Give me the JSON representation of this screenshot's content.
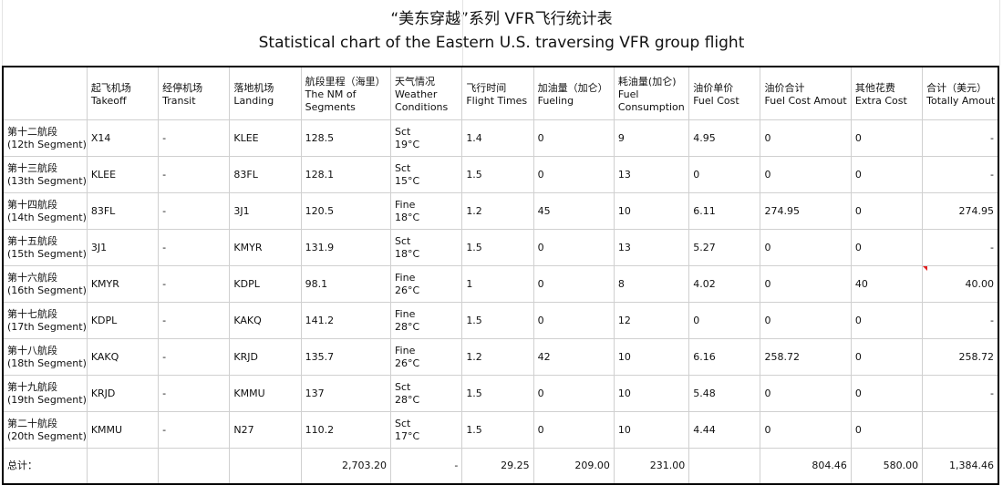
{
  "title_cn": "“美东穿越”系列 VFR飞行统计表",
  "title_en": "Statistical chart of the Eastern U.S. traversing VFR group flight",
  "headers": [
    {
      "cn": "",
      "en": ""
    },
    {
      "cn": "起飞机场",
      "en": "Takeoff"
    },
    {
      "cn": "经停机场",
      "en": "Transit"
    },
    {
      "cn": "落地机场",
      "en": "Landing"
    },
    {
      "cn": "航段里程（海里）",
      "en": "The NM of",
      "en2": "Segments"
    },
    {
      "cn": "天气情况",
      "en": "Weather",
      "en2": "Conditions"
    },
    {
      "cn": "飞行时间",
      "en": "Flight Times"
    },
    {
      "cn": "加油量（加仑）",
      "en": "Fueling"
    },
    {
      "cn": "耗油量(加仑)",
      "en": "Fuel",
      "en2": "Consumption"
    },
    {
      "cn": "油价单价",
      "en": "Fuel Cost"
    },
    {
      "cn": "油价合计",
      "en": "Fuel Cost Amout"
    },
    {
      "cn": "其他花费",
      "en": "Extra Cost"
    },
    {
      "cn": "合计（美元）",
      "en": "Totally Amout"
    }
  ],
  "rows": [
    {
      "seg_cn": "第十二航段",
      "seg_en": "(12th Segment)",
      "takeoff": "X14",
      "transit": "-",
      "landing": "KLEE",
      "nm": "128.5",
      "wx1": "Sct",
      "wx2": "19°C",
      "time": "1.4",
      "fueling": "0",
      "consumption": "9",
      "fuel_cost": "4.95",
      "fuel_amount": "0",
      "extra": "0",
      "total": "-"
    },
    {
      "seg_cn": "第十三航段",
      "seg_en": "(13th Segment)",
      "takeoff": "KLEE",
      "transit": "-",
      "landing": "83FL",
      "nm": "128.1",
      "wx1": "Sct",
      "wx2": "15°C",
      "time": "1.5",
      "fueling": "0",
      "consumption": "13",
      "fuel_cost": "0",
      "fuel_amount": "0",
      "extra": "0",
      "total": "-"
    },
    {
      "seg_cn": "第十四航段",
      "seg_en": "(14th Segment)",
      "takeoff": "83FL",
      "transit": "-",
      "landing": "3J1",
      "nm": "120.5",
      "wx1": "Fine",
      "wx2": "18°C",
      "time": "1.2",
      "fueling": "45",
      "consumption": "10",
      "fuel_cost": "6.11",
      "fuel_amount": "274.95",
      "extra": "0",
      "total": "274.95"
    },
    {
      "seg_cn": "第十五航段",
      "seg_en": "(15th Segment)",
      "takeoff": "3J1",
      "transit": "-",
      "landing": "KMYR",
      "nm": "131.9",
      "wx1": "Sct",
      "wx2": "18°C",
      "time": "1.5",
      "fueling": "0",
      "consumption": "13",
      "fuel_cost": "5.27",
      "fuel_amount": "0",
      "extra": "0",
      "total": "-"
    },
    {
      "seg_cn": "第十六航段",
      "seg_en": "(16th Segment)",
      "takeoff": "KMYR",
      "transit": "-",
      "landing": "KDPL",
      "nm": "98.1",
      "wx1": "Fine",
      "wx2": "26°C",
      "time": "1",
      "fueling": "0",
      "consumption": "8",
      "fuel_cost": "4.02",
      "fuel_amount": "0",
      "extra": "40",
      "total": "40.00"
    },
    {
      "seg_cn": "第十七航段",
      "seg_en": "(17th Segment)",
      "takeoff": "KDPL",
      "transit": "-",
      "landing": "KAKQ",
      "nm": "141.2",
      "wx1": "Fine",
      "wx2": "28°C",
      "time": "1.5",
      "fueling": "0",
      "consumption": "12",
      "fuel_cost": "0",
      "fuel_amount": "0",
      "extra": "0",
      "total": "-"
    },
    {
      "seg_cn": "第十八航段",
      "seg_en": "(18th Segment)",
      "takeoff": "KAKQ",
      "transit": "-",
      "landing": "KRJD",
      "nm": "135.7",
      "wx1": "Fine",
      "wx2": "26°C",
      "time": "1.2",
      "fueling": "42",
      "consumption": "10",
      "fuel_cost": "6.16",
      "fuel_amount": "258.72",
      "extra": "0",
      "total": "258.72"
    },
    {
      "seg_cn": "第十九航段",
      "seg_en": "(19th Segment)",
      "takeoff": "KRJD",
      "transit": "-",
      "landing": "KMMU",
      "nm": "137",
      "wx1": "Sct",
      "wx2": "28°C",
      "time": "1.5",
      "fueling": "0",
      "consumption": "10",
      "fuel_cost": "5.48",
      "fuel_amount": "0",
      "extra": "0",
      "total": "-"
    },
    {
      "seg_cn": "第二十航段",
      "seg_en": "(20th Segment)",
      "takeoff": "KMMU",
      "transit": "-",
      "landing": "N27",
      "nm": "110.2",
      "wx1": "Sct",
      "wx2": "17°C",
      "time": "1.5",
      "fueling": "0",
      "consumption": "10",
      "fuel_cost": "4.44",
      "fuel_amount": "0",
      "extra": "0",
      "total": ""
    }
  ],
  "total_row": {
    "label": "总计：",
    "nm": "2,703.20",
    "weather": "-",
    "time": "29.25",
    "fueling": "209.00",
    "consumption": "231.00",
    "fuel_amount": "804.46",
    "extra": "580.00",
    "total": "1,384.46"
  }
}
